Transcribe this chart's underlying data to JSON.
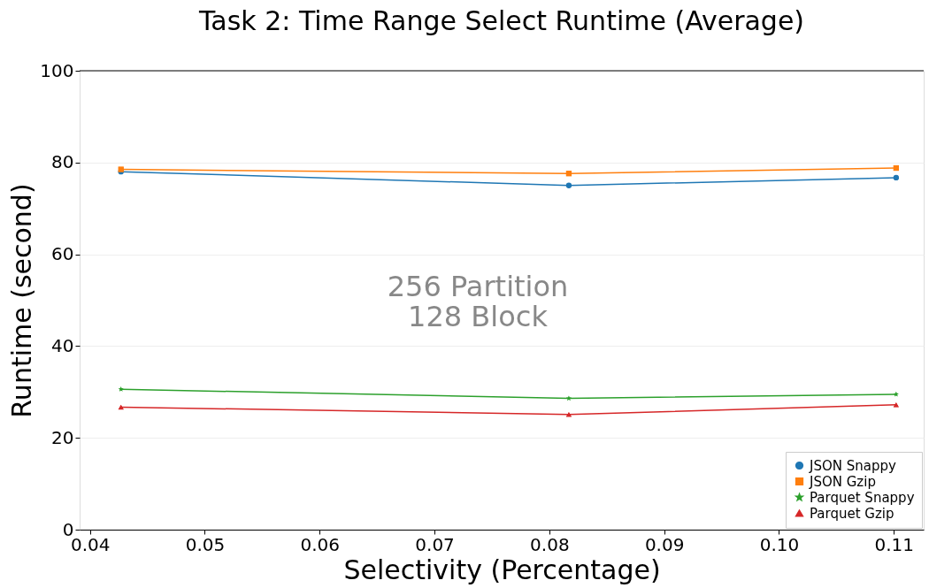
{
  "chart_data": {
    "type": "line",
    "title": "Task 2: Time Range Select Runtime (Average)",
    "xlabel": "Selectivity (Percentage)",
    "ylabel": "Runtime (second)",
    "x": [
      0.0427,
      0.0817,
      0.1102
    ],
    "series": [
      {
        "name": "JSON Snappy",
        "color": "#1f77b4",
        "marker": "circle",
        "values": [
          78.0,
          75.0,
          76.7
        ]
      },
      {
        "name": "JSON Gzip",
        "color": "#ff7f0e",
        "marker": "square",
        "values": [
          78.5,
          77.6,
          78.8
        ]
      },
      {
        "name": "Parquet Snappy",
        "color": "#2ca02c",
        "marker": "star",
        "values": [
          30.6,
          28.6,
          29.5
        ]
      },
      {
        "name": "Parquet Gzip",
        "color": "#d62728",
        "marker": "triangle",
        "values": [
          26.7,
          25.1,
          27.2
        ]
      }
    ],
    "xlim": [
      0.0391,
      0.1126
    ],
    "xticks": [
      0.04,
      0.05,
      0.06,
      0.07,
      0.08,
      0.09,
      {
        "value": 0.1,
        "label": "0.10"
      },
      0.11
    ],
    "ylim": [
      0,
      100
    ],
    "yticks": [
      0,
      20,
      40,
      60,
      80,
      100
    ],
    "annotations": [
      "256 Partition\n128 Block"
    ],
    "grid": "y",
    "legend": "bottom right",
    "line_style": "solid"
  }
}
